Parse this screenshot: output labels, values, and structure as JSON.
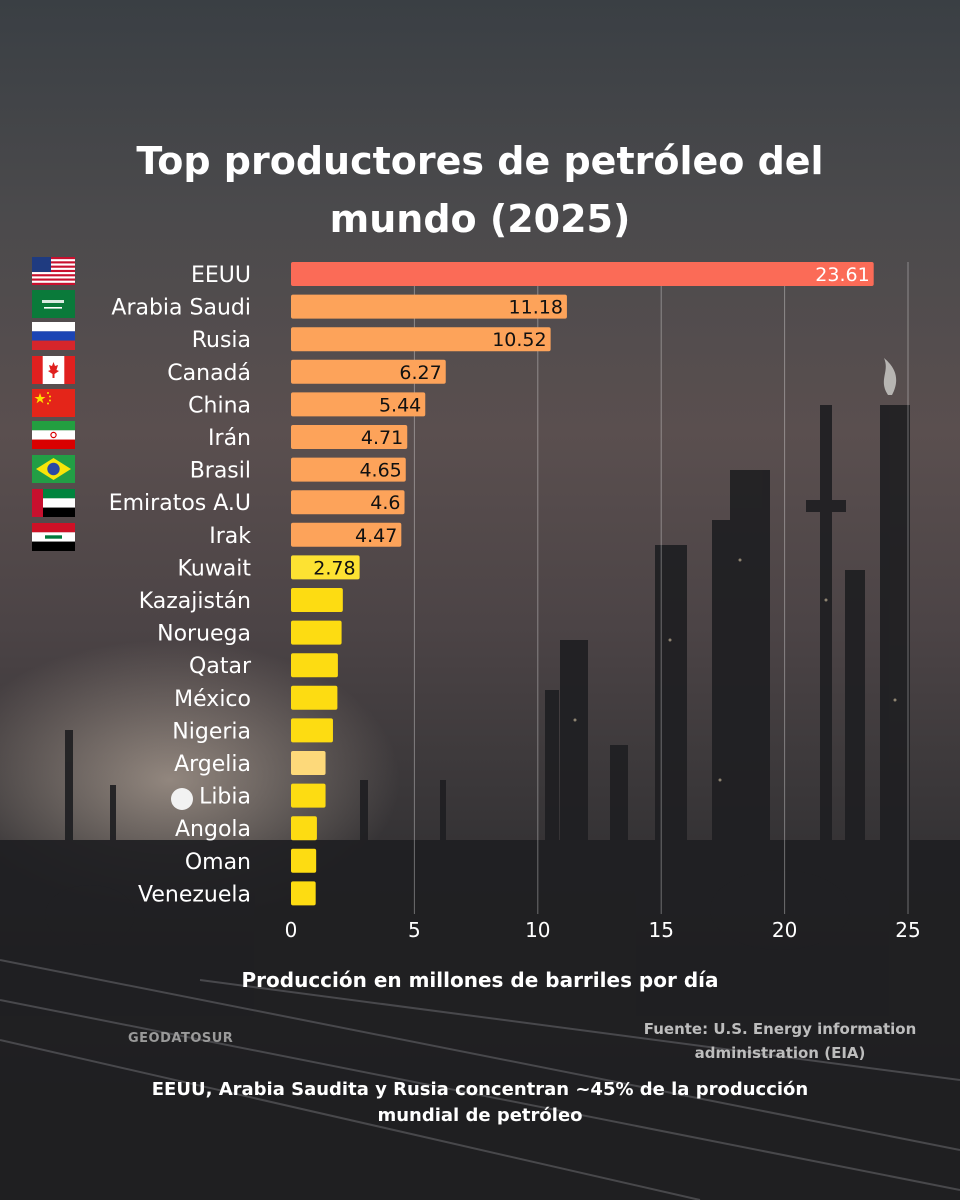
{
  "chart_data": {
    "type": "bar",
    "orientation": "horizontal",
    "title": "Top productores de petróleo del mundo (2025)",
    "xlabel": "Producción en millones de barriles por día",
    "ylabel": "",
    "xlim": [
      0,
      25
    ],
    "xticks": [
      0,
      5,
      10,
      15,
      20,
      25
    ],
    "grid": "vertical",
    "categories": [
      "EEUU",
      "Arabia Saudi",
      "Rusia",
      "Canadá",
      "China",
      "Irán",
      "Brasil",
      "Emiratos A.U",
      "Irak",
      "Kuwait",
      "Kazajistán",
      "Noruega",
      "Qatar",
      "México",
      "Nigeria",
      "Argelia",
      "Libia",
      "Angola",
      "Oman",
      "Venezuela"
    ],
    "values": [
      23.61,
      11.18,
      10.52,
      6.27,
      5.44,
      4.71,
      4.65,
      4.6,
      4.47,
      2.78,
      2.1,
      2.05,
      1.9,
      1.88,
      1.7,
      1.4,
      1.4,
      1.05,
      1.02,
      1.0
    ],
    "data_labels": [
      "23.61",
      "11.18",
      "10.52",
      "6.27",
      "5.44",
      "4.71",
      "4.65",
      "4.6",
      "4.47",
      "2.78",
      "",
      "",
      "",
      "",
      "",
      "",
      "",
      "",
      "",
      ""
    ],
    "colors": [
      "#fb6b57",
      "#fda35a",
      "#fda35a",
      "#fda35a",
      "#fda35a",
      "#fda35a",
      "#fda35a",
      "#fda35a",
      "#fda35a",
      "#fde232",
      "#fddc12",
      "#fddc12",
      "#fddc12",
      "#fddc12",
      "#fddc12",
      "#fdd97a",
      "#fddc12",
      "#fddc12",
      "#fddc12",
      "#fddc12"
    ],
    "flags": [
      "us-flag-icon",
      "saudi-arabia-flag-icon",
      "russia-flag-icon",
      "canada-flag-icon",
      "china-flag-icon",
      "iran-flag-icon",
      "brazil-flag-icon",
      "uae-flag-icon",
      "iraq-flag-icon"
    ]
  },
  "footer": {
    "brand": "GEODATOSUR",
    "source_line1": "Fuente: U.S. Energy  information",
    "source_line2": "administration (EIA)",
    "note_line1": "EEUU, Arabia Saudita y Rusia concentran ~45% de la producción",
    "note_line2": "mundial de petróleo"
  }
}
